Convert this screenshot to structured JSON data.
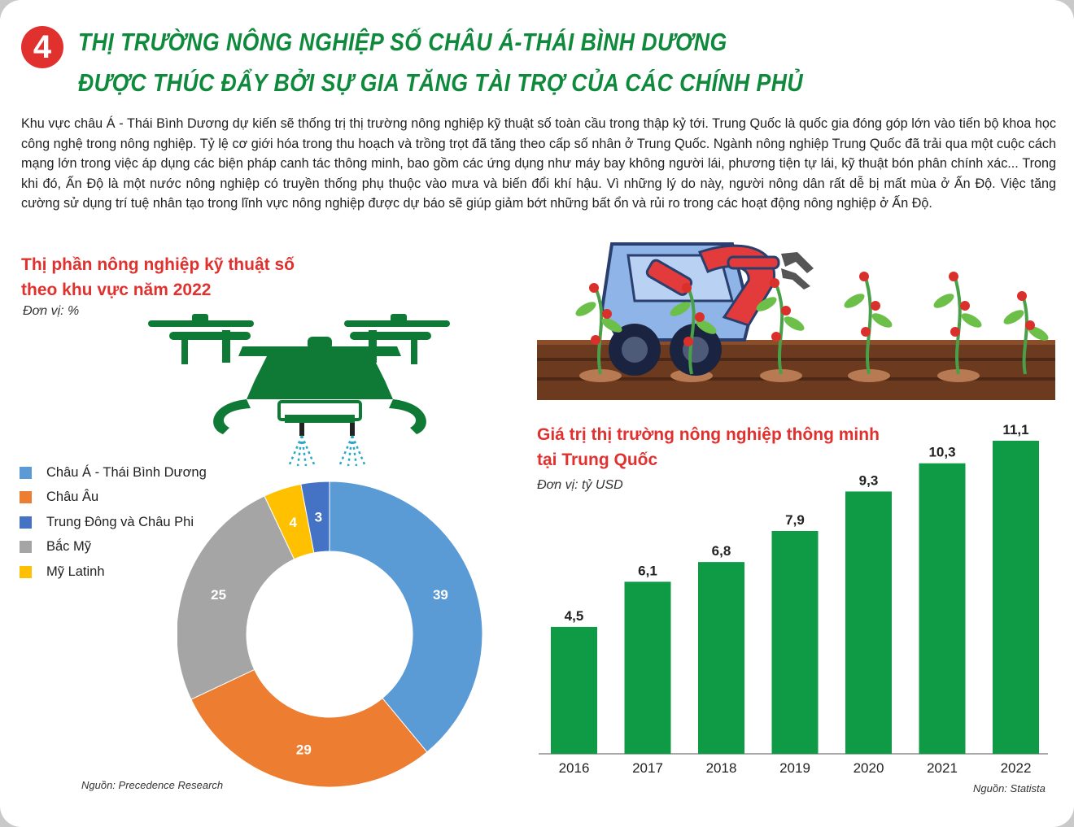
{
  "header": {
    "number": "4",
    "title_line1": "THỊ TRƯỜNG NÔNG NGHIỆP SỐ CHÂU Á-THÁI BÌNH DƯƠNG",
    "title_line2": "ĐƯỢC THÚC ĐẨY BỞI SỰ GIA TĂNG TÀI TRỢ CỦA CÁC CHÍNH PHỦ"
  },
  "intro": "Khu vực châu Á - Thái Bình Dương dự kiến sẽ thống trị thị trường nông nghiệp kỹ thuật số toàn cầu trong thập kỷ tới. Trung Quốc là quốc gia đóng góp lớn vào tiến bộ khoa học công nghệ trong nông nghiệp. Tỷ lệ cơ giới hóa trong thu hoạch và trồng trọt đã tăng theo cấp số nhân ở Trung Quốc. Ngành nông nghiệp Trung Quốc đã trải qua một cuộc cách mạng lớn trong việc áp dụng các biện pháp canh tác thông minh, bao gồm các ứng dụng như máy bay không người lái, phương tiện tự lái, kỹ thuật bón phân chính xác... Trong khi đó, Ấn Độ là một nước nông nghiệp có truyền thống phụ thuộc vào mưa và biến đổi khí hậu. Vì những lý do này, người nông dân rất dễ bị mất mùa ở Ấn Độ. Việc tăng cường sử dụng trí tuệ nhân tạo trong lĩnh vực nông nghiệp được dự báo sẽ giúp giảm bớt những bất ổn và rủi ro trong các hoạt động nông nghiệp ở Ấn Độ.",
  "donut": {
    "title_line1": "Thị phần nông nghiệp kỹ thuật số",
    "title_line2": "theo khu vực năm 2022",
    "unit": "Đơn vị: %",
    "source": "Nguồn: Precedence Research"
  },
  "bars": {
    "title_line1": "Giá trị thị trường nông nghiệp thông minh",
    "title_line2": "tại Trung Quốc",
    "unit": "Đơn vị: tỷ USD",
    "source": "Nguồn: Statista"
  },
  "colors": {
    "green": "#0f8a3c",
    "red": "#e0312f",
    "asia": "#5b9bd5",
    "europe": "#ed7d31",
    "mideast": "#4472c4",
    "namerica": "#a5a5a5",
    "latam": "#ffc000",
    "bar": "#0f9a45"
  },
  "icons": {
    "drone": "drone-icon",
    "robot": "farm-robot-icon"
  },
  "chart_data": [
    {
      "type": "pie",
      "title": "Thị phần nông nghiệp kỹ thuật số theo khu vực năm 2022",
      "categories": [
        "Châu Á - Thái Bình Dương",
        "Châu Âu",
        "Trung Đông và Châu Phi",
        "Bắc Mỹ",
        "Mỹ Latinh"
      ],
      "values": [
        39,
        29,
        3,
        25,
        4
      ],
      "value_labels": [
        "39",
        "29",
        "3",
        "25",
        "4"
      ],
      "drawing_order": [
        0,
        1,
        3,
        4,
        2
      ],
      "colors": [
        "#5b9bd5",
        "#ed7d31",
        "#4472c4",
        "#a5a5a5",
        "#ffc000"
      ],
      "legend_position": "top-left"
    },
    {
      "type": "bar",
      "title": "Giá trị thị trường nông nghiệp thông minh tại Trung Quốc",
      "categories": [
        "2016",
        "2017",
        "2018",
        "2019",
        "2020",
        "2021",
        "2022"
      ],
      "values": [
        4.5,
        6.1,
        6.8,
        7.9,
        9.3,
        10.3,
        11.1
      ],
      "value_labels": [
        "4,5",
        "6,1",
        "6,8",
        "7,9",
        "9,3",
        "10,3",
        "11,1"
      ],
      "ylim": [
        0,
        11.1
      ],
      "grid": false
    }
  ]
}
